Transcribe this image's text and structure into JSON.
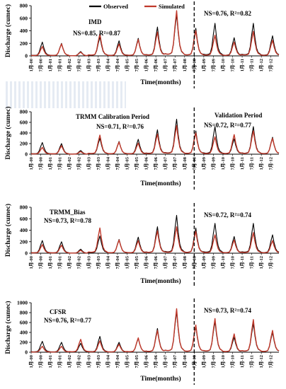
{
  "chart_data": [
    {
      "type": "line",
      "title": "",
      "annotation": "IMD",
      "stats_left": "NS=0.85, R²=0.87",
      "stats_right": "NS=0.76, R²=0.82",
      "ylabel": "Discharge (cumec)",
      "xlabel": "Time(months)",
      "ylim": [
        0,
        800
      ],
      "yticks": [
        0,
        200,
        400,
        600,
        800
      ],
      "legend": [
        "Observed",
        "Simulated"
      ],
      "legend_position": "top",
      "divider_x": "7月-08",
      "series": [
        {
          "name": "Observed",
          "color": "#000000",
          "peaks": [
            220,
            200,
            70,
            300,
            240,
            280,
            460,
            660,
            440,
            520,
            290,
            520,
            320,
            200
          ]
        },
        {
          "name": "Simulated",
          "color": "#c0392b",
          "peaks": [
            150,
            190,
            60,
            350,
            190,
            260,
            380,
            720,
            400,
            330,
            220,
            390,
            250,
            320
          ]
        }
      ]
    },
    {
      "type": "line",
      "title": "",
      "annotation": "TRMM Calibration Period",
      "annotation_right": "Validation Period",
      "stats_left": "NS=0.71, R²=0.76",
      "stats_right": "NS=0.72, R²=0.77",
      "ylabel": "Discharge (cumec)",
      "xlabel": "Time(months)",
      "ylim": [
        0,
        800
      ],
      "yticks": [
        0,
        200,
        400,
        600,
        800
      ],
      "divider_x": "7月-08",
      "series": [
        {
          "name": "Observed",
          "color": "#000000",
          "peaks": [
            220,
            200,
            70,
            300,
            240,
            280,
            460,
            660,
            440,
            520,
            290,
            520,
            320,
            300
          ]
        },
        {
          "name": "Simulated",
          "color": "#c0392b",
          "peaks": [
            130,
            160,
            50,
            360,
            230,
            210,
            380,
            540,
            400,
            330,
            370,
            440,
            300,
            240
          ]
        }
      ]
    },
    {
      "type": "line",
      "title": "",
      "annotation": "TRMM_Bias",
      "stats_left": "NS=0.73, R²=0.78",
      "stats_right": "NS=0.72, R²=0.74",
      "ylabel": "Discharge (cumec)",
      "xlabel": "Time(months)",
      "ylim": [
        0,
        800
      ],
      "yticks": [
        0,
        200,
        400,
        600,
        800
      ],
      "divider_x": "7月-08",
      "series": [
        {
          "name": "Observed",
          "color": "#000000",
          "peaks": [
            220,
            200,
            70,
            300,
            240,
            280,
            460,
            660,
            440,
            520,
            290,
            520,
            320,
            320
          ]
        },
        {
          "name": "Simulated",
          "color": "#c0392b",
          "peaks": [
            150,
            140,
            50,
            440,
            230,
            220,
            390,
            460,
            380,
            320,
            230,
            360,
            220,
            220
          ]
        }
      ]
    },
    {
      "type": "line",
      "title": "",
      "annotation": "CFSR",
      "stats_left": "NS=0.76, R²=0.77",
      "stats_right": "NS=0.73, R²=0.74",
      "ylabel": "Discharge (cumec)",
      "xlabel": "Time(months)",
      "ylim": [
        0,
        1000
      ],
      "yticks": [
        0,
        200,
        400,
        600,
        800,
        1000
      ],
      "divider_x": "7月-08",
      "series": [
        {
          "name": "Observed",
          "color": "#000000",
          "peaks": [
            220,
            200,
            180,
            320,
            200,
            280,
            480,
            820,
            520,
            620,
            300,
            580,
            400,
            380
          ]
        },
        {
          "name": "Simulated",
          "color": "#c0392b",
          "peaks": [
            120,
            120,
            260,
            230,
            160,
            290,
            440,
            880,
            550,
            680,
            370,
            660,
            440,
            400
          ]
        }
      ]
    }
  ],
  "x_tick_labels": [
    "1月-00",
    "7月-00",
    "1月-01",
    "7月-01",
    "1月-02",
    "7月-02",
    "1月-03",
    "7月-03",
    "1月-04",
    "7月-04",
    "1月-05",
    "7月-05",
    "1月-06",
    "7月-06",
    "1月-07",
    "7月-07",
    "1月-08",
    "7月-08",
    "1月-09",
    "7月-09",
    "1月-10",
    "7月-10",
    "1月-11",
    "7月-11",
    "1月-12",
    "7月-12"
  ]
}
